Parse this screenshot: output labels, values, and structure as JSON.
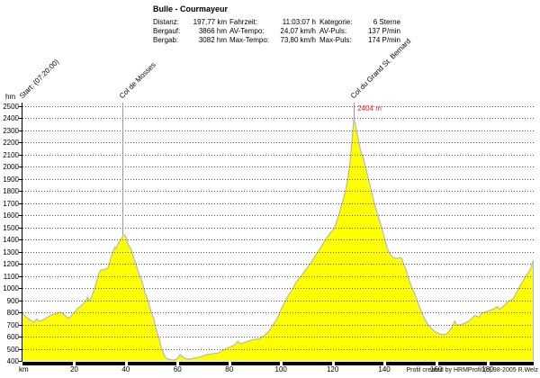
{
  "header": {
    "title": "Bulle - Courmayeur",
    "stats": [
      {
        "rows": [
          {
            "label": "Distanz:",
            "value": "197,77 km"
          },
          {
            "label": "Bergauf:",
            "value": "3866 hm"
          },
          {
            "label": "Bergab:",
            "value": "3082 hm"
          }
        ]
      },
      {
        "rows": [
          {
            "label": "Fahrzeit:",
            "value": "11:03:07 h"
          },
          {
            "label": "AV-Tempo:",
            "value": "24,07 km/h"
          },
          {
            "label": "Max-Tempo:",
            "value": "73,80 km/h"
          }
        ]
      },
      {
        "rows": [
          {
            "label": "Kategorie:",
            "value": "6 Sterne"
          },
          {
            "label": "AV-Puls:",
            "value": "137 P/min"
          },
          {
            "label": "Max-Puls:",
            "value": "174 P/min"
          }
        ]
      }
    ]
  },
  "footer": {
    "copyright": "Profil created by HRMProfil (c) 98-2005 R.Welz"
  },
  "chart_data": {
    "type": "area",
    "title": "Bulle - Courmayeur",
    "xlabel": "km",
    "ylabel": "hm",
    "xlim": [
      0,
      197.77
    ],
    "ylim": [
      400,
      2500
    ],
    "x_ticks": [
      20,
      40,
      60,
      80,
      100,
      120,
      140,
      160,
      180
    ],
    "y_tick_step": 100,
    "grid": "horizontal-dotted",
    "fill_color": "#ffff00",
    "line_color": "#b8b8b8",
    "end_line_color": "#9bb7e6",
    "markers": [
      {
        "km": 0,
        "label": "Start: (07:20:00)",
        "line": false
      },
      {
        "km": 38.8,
        "label": "Col de Mosses",
        "line": true,
        "peak": 1438
      },
      {
        "km": 128.2,
        "label": "Col du Grand St. Bernard",
        "line": true,
        "peak": 2404,
        "peak_label": "2404 m"
      }
    ],
    "profile": [
      [
        0,
        790
      ],
      [
        1.5,
        762
      ],
      [
        3,
        736
      ],
      [
        4.5,
        718
      ],
      [
        5.5,
        746
      ],
      [
        6.5,
        726
      ],
      [
        8,
        738
      ],
      [
        10,
        764
      ],
      [
        11.5,
        781
      ],
      [
        13,
        790
      ],
      [
        14.5,
        800
      ],
      [
        15.5,
        792
      ],
      [
        16.5,
        772
      ],
      [
        17.5,
        753
      ],
      [
        18.5,
        762
      ],
      [
        20,
        800
      ],
      [
        21.5,
        836
      ],
      [
        23,
        860
      ],
      [
        24.5,
        892
      ],
      [
        25.2,
        928
      ],
      [
        25.8,
        893
      ],
      [
        26.6,
        922
      ],
      [
        27.5,
        968
      ],
      [
        28.5,
        1040
      ],
      [
        29.5,
        1118
      ],
      [
        30.2,
        1148
      ],
      [
        31.5,
        1153
      ],
      [
        33,
        1163
      ],
      [
        34,
        1238
      ],
      [
        35,
        1300
      ],
      [
        35.7,
        1338
      ],
      [
        36.2,
        1326
      ],
      [
        37,
        1365
      ],
      [
        38,
        1400
      ],
      [
        39,
        1432
      ],
      [
        39.5,
        1438
      ],
      [
        40.2,
        1415
      ],
      [
        41,
        1352
      ],
      [
        41.8,
        1333
      ],
      [
        42.6,
        1278
      ],
      [
        43.8,
        1202
      ],
      [
        45,
        1122
      ],
      [
        46.2,
        1060
      ],
      [
        47.4,
        962
      ],
      [
        48.6,
        898
      ],
      [
        49.8,
        800
      ],
      [
        50.8,
        748
      ],
      [
        51.8,
        655
      ],
      [
        52.8,
        592
      ],
      [
        53.8,
        505
      ],
      [
        54.8,
        448
      ],
      [
        55.6,
        422
      ],
      [
        57,
        411
      ],
      [
        58.5,
        407
      ],
      [
        59.8,
        416
      ],
      [
        61,
        453
      ],
      [
        61.8,
        436
      ],
      [
        63,
        419
      ],
      [
        64.5,
        414
      ],
      [
        66,
        421
      ],
      [
        67.5,
        427
      ],
      [
        69,
        434
      ],
      [
        71,
        451
      ],
      [
        73,
        457
      ],
      [
        75.5,
        464
      ],
      [
        77.5,
        487
      ],
      [
        79,
        504
      ],
      [
        80.5,
        517
      ],
      [
        82,
        530
      ],
      [
        83.3,
        561
      ],
      [
        84.3,
        539
      ],
      [
        85.8,
        551
      ],
      [
        87.5,
        564
      ],
      [
        89.5,
        577
      ],
      [
        91.5,
        581
      ],
      [
        93.5,
        608
      ],
      [
        95.5,
        648
      ],
      [
        97,
        700
      ],
      [
        98.5,
        748
      ],
      [
        100,
        822
      ],
      [
        101.5,
        884
      ],
      [
        103,
        944
      ],
      [
        104.5,
        990
      ],
      [
        106,
        1055
      ],
      [
        108,
        1105
      ],
      [
        110,
        1163
      ],
      [
        112,
        1224
      ],
      [
        114,
        1289
      ],
      [
        115.5,
        1338
      ],
      [
        117,
        1394
      ],
      [
        118.5,
        1438
      ],
      [
        119.8,
        1472
      ],
      [
        120.7,
        1494
      ],
      [
        122.3,
        1600
      ],
      [
        124,
        1722
      ],
      [
        125.3,
        1835
      ],
      [
        126.1,
        1940
      ],
      [
        126.9,
        2080
      ],
      [
        127.6,
        2240
      ],
      [
        128.2,
        2404
      ],
      [
        128.9,
        2335
      ],
      [
        129.6,
        2262
      ],
      [
        130.8,
        2135
      ],
      [
        132,
        2062
      ],
      [
        134.2,
        1868
      ],
      [
        136.5,
        1670
      ],
      [
        139,
        1496
      ],
      [
        141.2,
        1324
      ],
      [
        142.4,
        1271
      ],
      [
        143.4,
        1253
      ],
      [
        144.5,
        1244
      ],
      [
        145.8,
        1250
      ],
      [
        146.7,
        1247
      ],
      [
        147.4,
        1200
      ],
      [
        148.4,
        1152
      ],
      [
        149.8,
        1052
      ],
      [
        150.7,
        1002
      ],
      [
        152,
        940
      ],
      [
        153.1,
        876
      ],
      [
        154.4,
        801
      ],
      [
        155.5,
        751
      ],
      [
        156.8,
        702
      ],
      [
        157.8,
        678
      ],
      [
        159,
        651
      ],
      [
        160.2,
        633
      ],
      [
        161.5,
        622
      ],
      [
        163,
        617
      ],
      [
        164,
        622
      ],
      [
        165,
        644
      ],
      [
        166.1,
        676
      ],
      [
        167.2,
        728
      ],
      [
        168.2,
        693
      ],
      [
        169.4,
        700
      ],
      [
        170.8,
        707
      ],
      [
        171.8,
        720
      ],
      [
        172.5,
        727
      ],
      [
        173.8,
        748
      ],
      [
        174.9,
        775
      ],
      [
        175.7,
        768
      ],
      [
        176.6,
        762
      ],
      [
        177.8,
        793
      ],
      [
        179,
        804
      ],
      [
        180.2,
        812
      ],
      [
        181.4,
        821
      ],
      [
        182.4,
        829
      ],
      [
        183.6,
        848
      ],
      [
        184.6,
        826
      ],
      [
        185.8,
        846
      ],
      [
        186.8,
        866
      ],
      [
        188.1,
        893
      ],
      [
        189,
        899
      ],
      [
        190,
        918
      ],
      [
        191.4,
        972
      ],
      [
        192.7,
        1028
      ],
      [
        193.7,
        1060
      ],
      [
        194.9,
        1108
      ],
      [
        196.1,
        1138
      ],
      [
        196.9,
        1183
      ],
      [
        197.4,
        1218
      ],
      [
        197.77,
        1228
      ]
    ]
  }
}
